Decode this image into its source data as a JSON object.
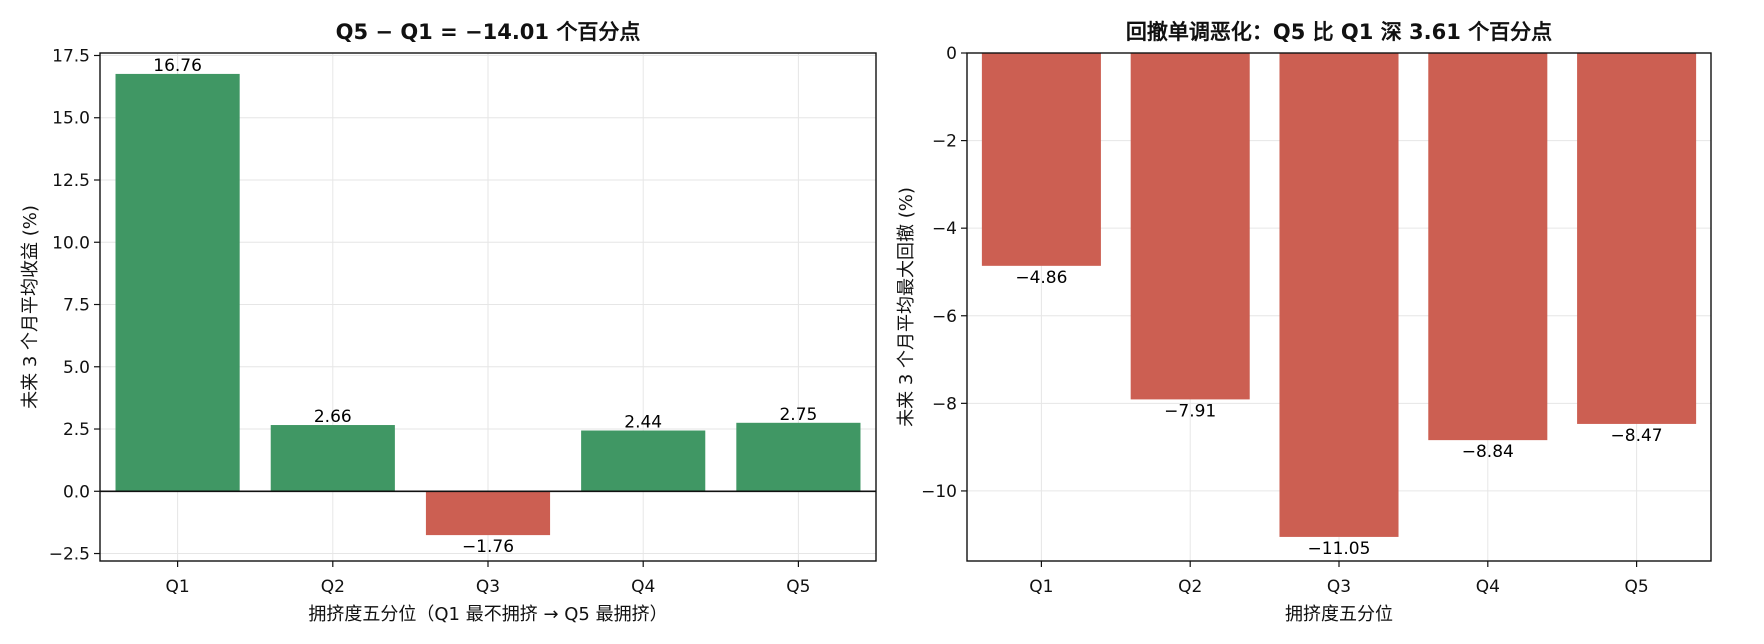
{
  "chart_data": [
    {
      "type": "bar",
      "title": "Q5 − Q1 = −14.01 个百分点",
      "xlabel": "拥挤度五分位（Q1 最不拥挤 → Q5 最拥挤）",
      "ylabel": "未来 3 个月平均收益 (%)",
      "categories": [
        "Q1",
        "Q2",
        "Q3",
        "Q4",
        "Q5"
      ],
      "values": [
        16.76,
        2.66,
        -1.76,
        2.44,
        2.75
      ],
      "value_labels": [
        "16.76",
        "2.66",
        "−1.76",
        "2.44",
        "2.75"
      ],
      "ylim": [
        -2.8,
        17.6
      ],
      "yticks": [
        -2.5,
        0,
        2.5,
        5,
        7.5,
        10,
        12.5,
        15,
        17.5
      ],
      "ytick_labels": [
        "−2.5",
        "0.0",
        "2.5",
        "5.0",
        "7.5",
        "10.0",
        "12.5",
        "15.0",
        "17.5"
      ],
      "grid": true,
      "zero_line": true,
      "colors": {
        "positive": "#409764",
        "negative": "#cc5f52"
      }
    },
    {
      "type": "bar",
      "title": "回撤单调恶化：Q5 比 Q1 深 3.61 个百分点",
      "xlabel": "拥挤度五分位",
      "ylabel": "未来 3 个月平均最大回撤 (%)",
      "categories": [
        "Q1",
        "Q2",
        "Q3",
        "Q4",
        "Q5"
      ],
      "values": [
        -4.86,
        -7.91,
        -11.05,
        -8.84,
        -8.47
      ],
      "value_labels": [
        "−4.86",
        "−7.91",
        "−11.05",
        "−8.84",
        "−8.47"
      ],
      "ylim": [
        -11.6,
        0
      ],
      "yticks": [
        -10,
        -8,
        -6,
        -4,
        -2,
        0
      ],
      "ytick_labels": [
        "−10",
        "−8",
        "−6",
        "−4",
        "−2",
        "0"
      ],
      "grid": true,
      "zero_line": false,
      "colors": {
        "positive": "#409764",
        "negative": "#cc5f52"
      }
    }
  ]
}
